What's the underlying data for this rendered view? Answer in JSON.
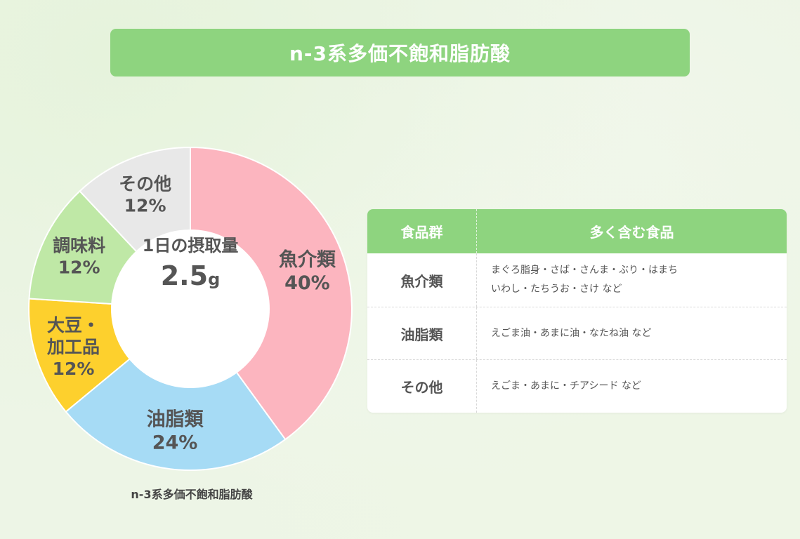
{
  "title": "n-3系多価不飽和脂肪酸",
  "center": {
    "line1": "1日の摂取量",
    "value": "2.5",
    "unit": "g"
  },
  "caption": "n-3系多価不飽和脂肪酸",
  "colors": {
    "accent": "#8ed47f"
  },
  "chart_data": {
    "type": "pie",
    "title": "n-3系多価不飽和脂肪酸",
    "slices": [
      {
        "label": "魚介類",
        "value": 40,
        "display": "40%",
        "color": "#fcb5bf"
      },
      {
        "label": "油脂類",
        "value": 24,
        "display": "24%",
        "color": "#a6dbf5"
      },
      {
        "label": "大豆・加工品",
        "lines": [
          "大豆・",
          "加工品"
        ],
        "value": 12,
        "display": "12%",
        "color": "#fdd02d"
      },
      {
        "label": "調味料",
        "value": 12,
        "display": "12%",
        "color": "#bfe8a6"
      },
      {
        "label": "その他",
        "value": 12,
        "display": "12%",
        "color": "#e8e8e8"
      }
    ]
  },
  "table": {
    "headers": [
      "食品群",
      "多く含む食品"
    ],
    "rows": [
      {
        "group": "魚介類",
        "foods": [
          "まぐろ脂身・さば・さんま・ぶり・はまち",
          "いわし・たちうお・さけ など"
        ]
      },
      {
        "group": "油脂類",
        "foods": [
          "えごま油・あまに油・なたね油 など"
        ]
      },
      {
        "group": "その他",
        "foods": [
          "えごま・あまに・チアシード など"
        ]
      }
    ]
  }
}
